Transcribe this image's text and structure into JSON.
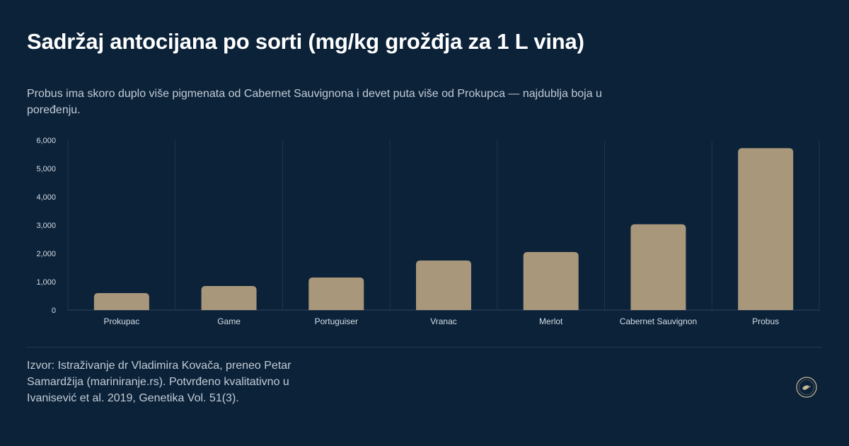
{
  "header": {
    "title": "Sadržaj antocijana po sorti (mg/kg grožđja za 1 L vina)",
    "subtitle": "Probus ima skoro duplo više pigmenata od Cabernet Sauvignona i devet puta više od Prokupca — najdublja boja u poređenju."
  },
  "footer": {
    "source": "Izvor: Istraživanje dr Vladimira Kovača, preneo Petar Samardžija (mariniranje.rs). Potvrđeno kvalitativno u Ivanisević et al. 2019, Genetika Vol. 51(3)."
  },
  "colors": {
    "background": "#0b2239",
    "bar": "#a8977b",
    "grid": "#1f3550",
    "axis_text": "#d6dde5"
  },
  "chart_data": {
    "type": "bar",
    "categories": [
      "Prokupac",
      "Game",
      "Portuguiser",
      "Vranac",
      "Merlot",
      "Cabernet Sauvignon",
      "Probus"
    ],
    "values": [
      600,
      850,
      1150,
      1750,
      2050,
      3030,
      5720
    ],
    "yticks": [
      "0",
      "1,000",
      "2,000",
      "3,000",
      "4,000",
      "5,000",
      "6,000"
    ],
    "ylim": [
      0,
      6000
    ],
    "xlabel": "",
    "ylabel": "",
    "grid": "vertical separators between categories",
    "legend": "none"
  }
}
